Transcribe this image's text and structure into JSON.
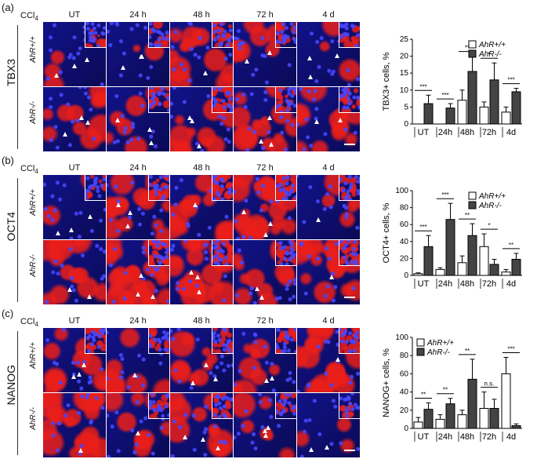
{
  "panels": [
    {
      "letter": "(a)",
      "stain": "TBX3",
      "ccl4": "CCl",
      "ccl4_sub": "4",
      "columns": [
        "UT",
        "24 h",
        "48 h",
        "72 h",
        "4 d"
      ],
      "genotypes": [
        "AhR+/+",
        "AhR-/-"
      ]
    },
    {
      "letter": "(b)",
      "stain": "OCT4",
      "ccl4": "CCl",
      "ccl4_sub": "4",
      "columns": [
        "UT",
        "24 h",
        "48 h",
        "72 h",
        "4 d"
      ],
      "genotypes": [
        "AhR+/+",
        "AhR-/-"
      ]
    },
    {
      "letter": "(c)",
      "stain": "NANOG",
      "ccl4": "CCl",
      "ccl4_sub": "4",
      "columns": [
        "UT",
        "24 h",
        "48 h",
        "72 h",
        "4 d"
      ],
      "genotypes": [
        "AhR+/+",
        "AhR-/-"
      ]
    }
  ],
  "colors": {
    "dapi": "#1c1cc8",
    "red": "#e0201a",
    "bar_wt": "#ffffff",
    "bar_ko": "#444444"
  },
  "chart_data": [
    {
      "type": "bar",
      "title": "",
      "ylabel": "TBX3+ cells, %",
      "ylim": [
        0,
        25
      ],
      "yticks": [
        0,
        5,
        10,
        15,
        20,
        25
      ],
      "categories": [
        "UT",
        "24h",
        "48h",
        "72h",
        "4d"
      ],
      "series": [
        {
          "name": "AhR+/+",
          "values": [
            0,
            0,
            7,
            5,
            3.5
          ],
          "err": [
            0,
            0,
            3,
            1.5,
            1.5
          ]
        },
        {
          "name": "AhR-/-",
          "values": [
            6,
            4.7,
            15.5,
            13,
            9.5
          ],
          "err": [
            2.5,
            1.3,
            4.5,
            5,
            1
          ]
        }
      ],
      "significance": [
        "***",
        "***",
        "**",
        "*",
        "***"
      ],
      "legend": "top-right"
    },
    {
      "type": "bar",
      "title": "",
      "ylabel": "OCT4+ cells, %",
      "ylim": [
        0,
        100
      ],
      "yticks": [
        0,
        20,
        40,
        60,
        80,
        100
      ],
      "categories": [
        "UT",
        "24h",
        "48h",
        "72h",
        "4d"
      ],
      "series": [
        {
          "name": "AhR+/+",
          "values": [
            2,
            7,
            15,
            34,
            4
          ],
          "err": [
            1,
            2,
            8,
            15,
            3
          ]
        },
        {
          "name": "AhR-/-",
          "values": [
            34,
            66,
            47,
            13,
            19
          ],
          "err": [
            13,
            19,
            14,
            6,
            7
          ]
        }
      ],
      "significance": [
        "***",
        "***",
        "**",
        "*",
        "**"
      ],
      "legend": "top-right"
    },
    {
      "type": "bar",
      "title": "",
      "ylabel": "NANOG+ cells, %",
      "ylim": [
        0,
        100
      ],
      "yticks": [
        0,
        20,
        40,
        60,
        80,
        100
      ],
      "categories": [
        "UT",
        "24h",
        "48h",
        "72h",
        "4d"
      ],
      "series": [
        {
          "name": "AhR+/+",
          "values": [
            7,
            10,
            15,
            22,
            60
          ],
          "err": [
            5,
            5,
            5,
            18,
            18
          ]
        },
        {
          "name": "AhR-/-",
          "values": [
            21,
            27,
            54,
            22,
            3
          ],
          "err": [
            7,
            6,
            22,
            10,
            2
          ]
        }
      ],
      "significance": [
        "**",
        "**",
        "**",
        "n.s.",
        "***"
      ],
      "legend": "top-left"
    }
  ]
}
